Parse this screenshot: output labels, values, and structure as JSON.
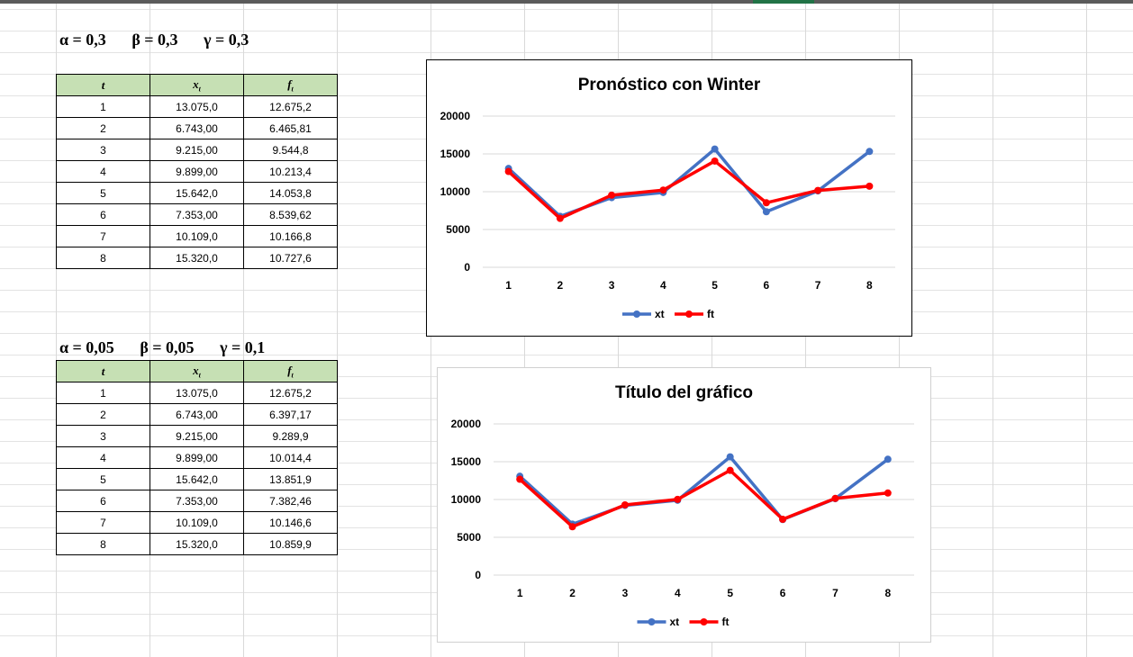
{
  "params_top": {
    "alpha": "α = 0,3",
    "beta": "β = 0,3",
    "gamma": "γ = 0,3"
  },
  "params_bottom": {
    "alpha": "α = 0,05",
    "beta": "β = 0,05",
    "gamma": "γ = 0,1"
  },
  "table_headers": {
    "t": "t",
    "x": "x",
    "x_sub": "t",
    "f": "f",
    "f_sub": "t"
  },
  "table1": [
    [
      "1",
      "13.075,0",
      "12.675,2"
    ],
    [
      "2",
      "6.743,00",
      "6.465,81"
    ],
    [
      "3",
      "9.215,00",
      "9.544,8"
    ],
    [
      "4",
      "9.899,00",
      "10.213,4"
    ],
    [
      "5",
      "15.642,0",
      "14.053,8"
    ],
    [
      "6",
      "7.353,00",
      "8.539,62"
    ],
    [
      "7",
      "10.109,0",
      "10.166,8"
    ],
    [
      "8",
      "15.320,0",
      "10.727,6"
    ]
  ],
  "table2": [
    [
      "1",
      "13.075,0",
      "12.675,2"
    ],
    [
      "2",
      "6.743,00",
      "6.397,17"
    ],
    [
      "3",
      "9.215,00",
      "9.289,9"
    ],
    [
      "4",
      "9.899,00",
      "10.014,4"
    ],
    [
      "5",
      "15.642,0",
      "13.851,9"
    ],
    [
      "6",
      "7.353,00",
      "7.382,46"
    ],
    [
      "7",
      "10.109,0",
      "10.146,6"
    ],
    [
      "8",
      "15.320,0",
      "10.859,9"
    ]
  ],
  "colors": {
    "xt": "#4472c4",
    "ft": "#ff0000",
    "header_fill": "#c6e0b4"
  },
  "chart_data": [
    {
      "type": "line",
      "title": "Pronóstico con Winter",
      "categories": [
        "1",
        "2",
        "3",
        "4",
        "5",
        "6",
        "7",
        "8"
      ],
      "ylim": [
        0,
        20000
      ],
      "yticks": [
        "0",
        "5000",
        "10000",
        "15000",
        "20000"
      ],
      "grid": true,
      "legend": "bottom",
      "series": [
        {
          "name": "xt",
          "values": [
            13075,
            6743,
            9215,
            9899,
            15642,
            7353,
            10109,
            15320
          ]
        },
        {
          "name": "ft",
          "values": [
            12675.2,
            6465.81,
            9544.8,
            10213.4,
            14053.8,
            8539.62,
            10166.8,
            10727.6
          ]
        }
      ]
    },
    {
      "type": "line",
      "title": "Título del gráfico",
      "categories": [
        "1",
        "2",
        "3",
        "4",
        "5",
        "6",
        "7",
        "8"
      ],
      "ylim": [
        0,
        20000
      ],
      "yticks": [
        "0",
        "5000",
        "10000",
        "15000",
        "20000"
      ],
      "grid": true,
      "legend": "bottom",
      "series": [
        {
          "name": "xt",
          "values": [
            13075,
            6743,
            9215,
            9899,
            15642,
            7353,
            10109,
            15320
          ]
        },
        {
          "name": "ft",
          "values": [
            12675.2,
            6397.17,
            9289.9,
            10014.4,
            13851.9,
            7382.46,
            10146.6,
            10859.9
          ]
        }
      ]
    }
  ]
}
